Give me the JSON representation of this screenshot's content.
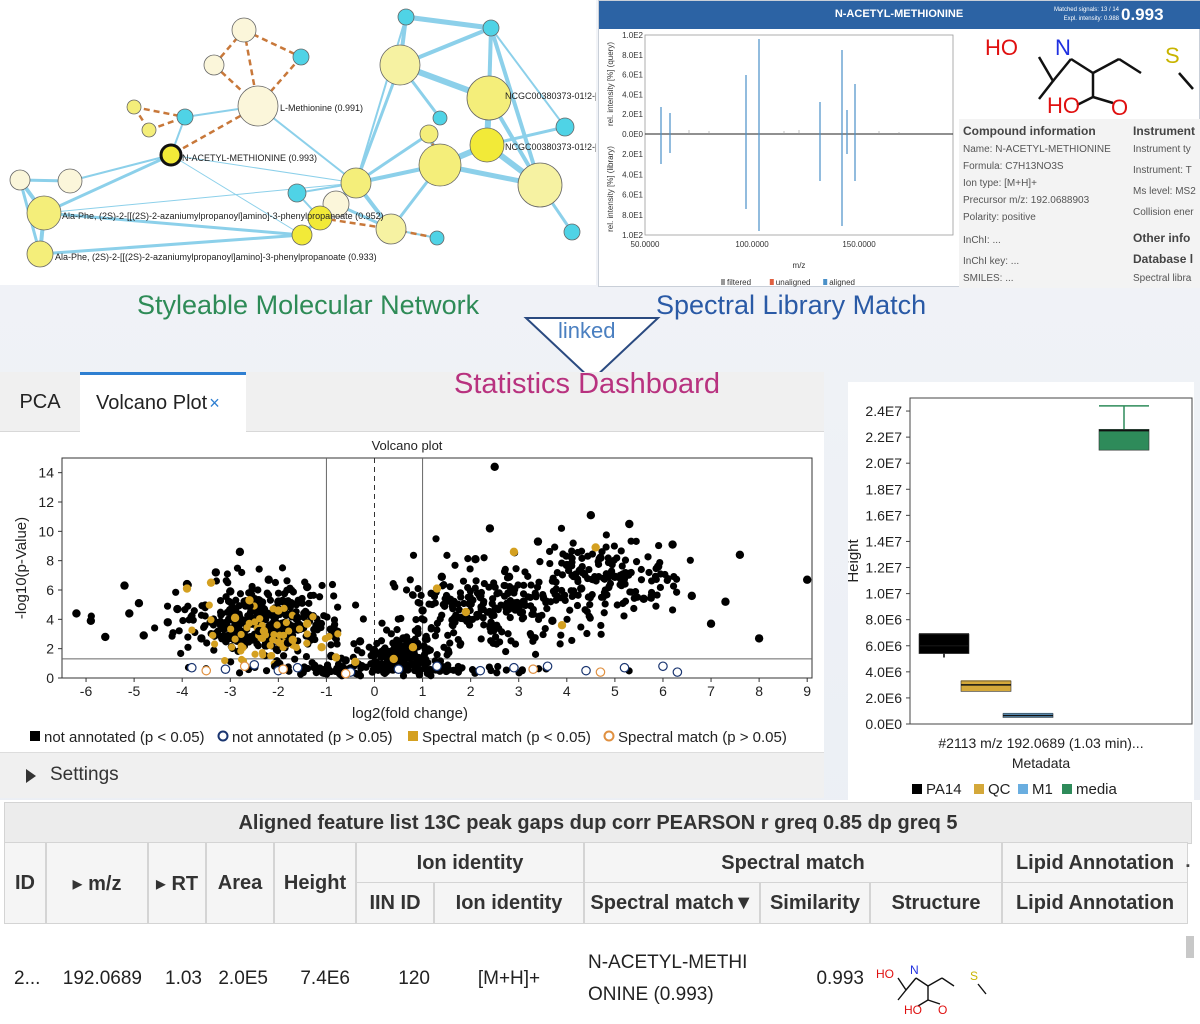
{
  "network": {
    "labels": {
      "methionine": "L-Methionine (0.991)",
      "acetyl": "N-ACETYL-METHIONINE (0.993)",
      "ncgc1": "NCGC00380373-01!2-[",
      "ncgc2": "NCGC00380373-01!2-[",
      "alaphe1": "Ala-Phe, (2S)-2-[[(2S)-2-azaniumylpropanoyl]amino]-3-phenylpropanoate (0.952)",
      "alaphe2": "Ala-Phe, (2S)-2-[[(2S)-2-azaniumylpropanoyl]amino]-3-phenylpropanoate (0.933)"
    }
  },
  "spectral": {
    "title": "N-ACETYL-METHIONINE",
    "matched_label": "Matched signals:",
    "matched_value": "13 / 14",
    "intensity_label": "Expl. intensity:",
    "intensity_value": "0.988",
    "score": "0.993",
    "y_label_top": "rel. intensity [%] (query)",
    "y_label_bottom": "rel. intensity [%] (library)",
    "y_ticks_top": [
      "1.0E2",
      "8.0E1",
      "6.0E1",
      "4.0E1",
      "2.0E1",
      "0.0E0"
    ],
    "y_ticks_bottom": [
      "2.0E1",
      "4.0E1",
      "6.0E1",
      "8.0E1",
      "1.0E2"
    ],
    "x_ticks": [
      "50.0000",
      "100.0000",
      "150.0000"
    ],
    "x_label": "m/z",
    "legend": [
      "filtered",
      "unaligned",
      "aligned"
    ],
    "legend_colors": [
      "#999999",
      "#e06040",
      "#4a90c8"
    ],
    "structure": {
      "ho1": "HO",
      "n": "N",
      "s": "S",
      "ho2": "HO",
      "o": "O"
    },
    "compound_header": "Compound information",
    "compound_rows": [
      "Name: N-ACETYL-METHIONINE",
      "Formula: C7H13NO3S",
      "Ion type: [M+H]+",
      "Precursor m/z: 192.0688903",
      "Polarity: positive",
      "InChI: ...",
      "InChI key: ...",
      "SMILES: ..."
    ],
    "instrument_header": "Instrument",
    "instrument_rows": [
      "Instrument ty",
      "Instrument: T",
      "Ms level: MS2",
      "Collision ener"
    ],
    "other_header": "Other info",
    "database_header": "Database l",
    "database_rows": [
      "Spectral libra"
    ]
  },
  "labels": {
    "network": "Styleable Molecular Network",
    "spectral": "Spectral Library Match",
    "linked": "linked",
    "stats": "Statistics Dashboard",
    "colors": {
      "network": "#2e8b57",
      "spectral": "#2a5aa6",
      "stats": "#b8327f",
      "linked": "#4a7fc0"
    }
  },
  "stats": {
    "tabs": {
      "pca": "PCA",
      "volcano": "Volcano Plot",
      "close": "×"
    },
    "settings": "Settings"
  },
  "chart_data": [
    {
      "type": "scatter",
      "title": "Volcano plot",
      "xlabel": "log2(fold change)",
      "ylabel": "-log10(p-Value)",
      "xlim": [
        -6.5,
        9.1
      ],
      "ylim": [
        0,
        15
      ],
      "x_ticks": [
        -6,
        -5,
        -4,
        -3,
        -2,
        -1,
        0,
        1,
        2,
        3,
        4,
        5,
        6,
        7,
        8,
        9
      ],
      "y_ticks": [
        0,
        2,
        4,
        6,
        8,
        10,
        12,
        14
      ],
      "thresholds": {
        "fold_change": [
          -1,
          1
        ],
        "p_line": 1.3
      },
      "legend": [
        {
          "name": "not annotated (p < 0.05)",
          "color": "#000000",
          "marker": "filled-square"
        },
        {
          "name": "not annotated (p > 0.05)",
          "color": "#1a3570",
          "marker": "open-circle"
        },
        {
          "name": "Spectral match (p < 0.05)",
          "color": "#d4a020",
          "marker": "filled-square"
        },
        {
          "name": "Spectral match (p > 0.05)",
          "color": "#e09040",
          "marker": "open-circle"
        }
      ],
      "series": [
        {
          "name": "not annotated (p < 0.05)",
          "points": [
            [
              -6.2,
              4.4
            ],
            [
              -5.9,
              3.9
            ],
            [
              -5.6,
              2.8
            ],
            [
              -5.2,
              6.3
            ],
            [
              -5.1,
              4.4
            ],
            [
              -4.9,
              5.1
            ],
            [
              -4.8,
              2.9
            ],
            [
              -4.3,
              3.8
            ],
            [
              -4.1,
              4.7
            ],
            [
              -3.9,
              6.4
            ],
            [
              -3.6,
              2.7
            ],
            [
              -3.3,
              7.2
            ],
            [
              -3.0,
              5.9
            ],
            [
              -2.8,
              8.6
            ],
            [
              -2.6,
              4.9
            ],
            [
              -2.4,
              3.2
            ],
            [
              -2.2,
              6.7
            ],
            [
              -2.0,
              5.2
            ],
            [
              -1.8,
              2.4
            ],
            [
              -1.6,
              4.1
            ],
            [
              -1.4,
              6.2
            ],
            [
              -1.2,
              3.6
            ],
            [
              -0.9,
              1.5
            ],
            [
              -0.6,
              1.2
            ],
            [
              -0.3,
              2.5
            ],
            [
              0.2,
              1.9
            ],
            [
              0.6,
              2.7
            ],
            [
              1.0,
              4.6
            ],
            [
              1.4,
              6.9
            ],
            [
              1.8,
              4.1
            ],
            [
              2.1,
              8.1
            ],
            [
              2.4,
              10.2
            ],
            [
              2.5,
              14.4
            ],
            [
              2.8,
              6.9
            ],
            [
              3.1,
              5.2
            ],
            [
              3.4,
              9.3
            ],
            [
              3.7,
              3.9
            ],
            [
              4.0,
              7.7
            ],
            [
              4.3,
              6.1
            ],
            [
              4.5,
              11.1
            ],
            [
              4.7,
              8.2
            ],
            [
              5.0,
              6.9
            ],
            [
              5.3,
              10.5
            ],
            [
              5.6,
              5.4
            ],
            [
              5.9,
              7.6
            ],
            [
              6.2,
              9.1
            ],
            [
              6.6,
              5.6
            ],
            [
              7.0,
              3.7
            ],
            [
              7.3,
              5.2
            ],
            [
              7.6,
              8.4
            ],
            [
              8.0,
              2.7
            ],
            [
              9.0,
              6.7
            ]
          ]
        },
        {
          "name": "not annotated (p > 0.05)",
          "points": [
            [
              -3.8,
              0.7
            ],
            [
              -3.1,
              0.6
            ],
            [
              -2.5,
              0.9
            ],
            [
              -2.0,
              0.5
            ],
            [
              -1.6,
              0.7
            ],
            [
              -0.5,
              0.4
            ],
            [
              0.5,
              0.6
            ],
            [
              1.3,
              0.8
            ],
            [
              2.2,
              0.5
            ],
            [
              2.9,
              0.7
            ],
            [
              3.6,
              0.8
            ],
            [
              4.4,
              0.5
            ],
            [
              5.2,
              0.7
            ],
            [
              6.0,
              0.8
            ],
            [
              6.3,
              0.4
            ]
          ]
        },
        {
          "name": "Spectral match (p < 0.05)",
          "points": [
            [
              -3.9,
              6.1
            ],
            [
              -3.4,
              6.5
            ],
            [
              -2.9,
              4.1
            ],
            [
              -2.6,
              5.3
            ],
            [
              -2.3,
              3.2
            ],
            [
              -2.0,
              4.6
            ],
            [
              -1.7,
              2.6
            ],
            [
              -1.4,
              3.7
            ],
            [
              -1.1,
              2.1
            ],
            [
              -0.8,
              1.4
            ],
            [
              -0.4,
              1.1
            ],
            [
              0.4,
              1.3
            ],
            [
              0.8,
              2.1
            ],
            [
              1.3,
              6.1
            ],
            [
              1.9,
              4.5
            ],
            [
              2.9,
              8.6
            ],
            [
              3.9,
              3.6
            ],
            [
              4.6,
              8.9
            ]
          ]
        },
        {
          "name": "Spectral match (p > 0.05)",
          "points": [
            [
              -3.5,
              0.5
            ],
            [
              -2.7,
              0.8
            ],
            [
              -1.9,
              0.6
            ],
            [
              -0.6,
              0.3
            ],
            [
              3.3,
              0.6
            ],
            [
              4.7,
              0.4
            ]
          ]
        }
      ]
    },
    {
      "type": "box",
      "ylabel": "Height",
      "xlabel": "Metadata",
      "x_tick": "#2113 m/z 192.0689 (1.03 min)...",
      "ylim": [
        0,
        25000000
      ],
      "y_ticks": [
        "0.0E0",
        "2.0E6",
        "4.0E6",
        "6.0E6",
        "8.0E6",
        "1.0E7",
        "1.2E7",
        "1.4E7",
        "1.6E7",
        "1.8E7",
        "2.0E7",
        "2.2E7",
        "2.4E7"
      ],
      "groups": [
        {
          "name": "PA14",
          "color": "#000000",
          "q1": 5400000,
          "median": 6000000,
          "q3": 6900000,
          "min": 5100000,
          "max": 6900000
        },
        {
          "name": "QC",
          "color": "#d4a83a",
          "q1": 2500000,
          "median": 3000000,
          "q3": 3300000,
          "min": 2500000,
          "max": 3300000
        },
        {
          "name": "M1",
          "color": "#6aaee0",
          "q1": 500000,
          "median": 650000,
          "q3": 800000,
          "min": 500000,
          "max": 800000
        },
        {
          "name": "media",
          "color": "#2e8b5a",
          "q1": 21000000,
          "median": 22500000,
          "q3": 22600000,
          "min": 21000000,
          "max": 24400000
        }
      ]
    }
  ],
  "table": {
    "title": "Aligned feature list 13C peak gaps dup corr PEARSON r greq 0.85 dp greq 5",
    "headers": {
      "id": "ID",
      "mz": "▸ m/z",
      "rt": "▸ RT",
      "area": "Area",
      "height": "Height",
      "ion_identity": "Ion identity",
      "spectral_match": "Spectral match",
      "lipid": "Lipid Annotation",
      "iin_id": "IIN ID",
      "ion_identity_sub": "Ion identity",
      "spectral_match_sub": "Spectral match▼",
      "similarity": "Similarity",
      "structure": "Structure",
      "lipid_sub": "Lipid Annotation"
    },
    "row": {
      "id": "2...",
      "mz": "192.0689",
      "rt": "1.03",
      "area": "2.0E5",
      "height": "7.4E6",
      "iin_id": "120",
      "ion": "[M+H]+",
      "match_l1": "N-ACETYL-METHI",
      "match_l2": "ONINE (0.993)",
      "similarity": "0.993",
      "structure": {
        "ho1": "HO",
        "n": "N",
        "s": "S",
        "ho2": "HO",
        "o": "O"
      }
    }
  }
}
